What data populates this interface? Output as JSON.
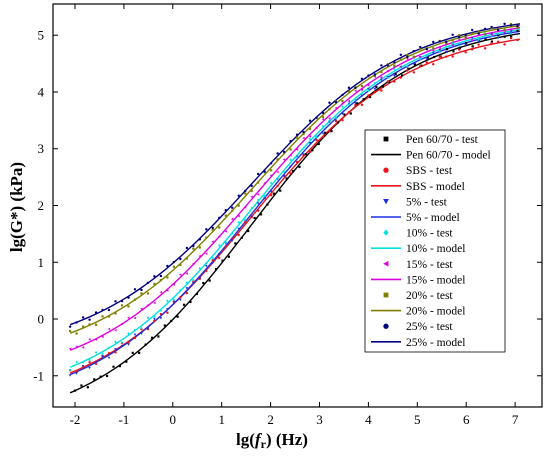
{
  "chart_data": {
    "type": "scatter",
    "xlabel_main": "lg(",
    "xlabel_var": "f",
    "xlabel_sub": "r",
    "xlabel_tail": ") (Hz)",
    "ylabel": "lg(G*) (kPa)",
    "xlim": [
      -2.45,
      7.55
    ],
    "ylim": [
      -1.55,
      5.55
    ],
    "xticks": [
      -2,
      -1,
      0,
      1,
      2,
      3,
      4,
      5,
      6,
      7
    ],
    "yticks": [
      -1,
      0,
      1,
      2,
      3,
      4,
      5
    ],
    "legend_position": "right-center",
    "series": [
      {
        "name": "Pen 60/70 - test",
        "model_name": "Pen 60/70 - model",
        "color": "#000000",
        "marker": "square",
        "start": -1.3,
        "end": 5.03,
        "xmin": -2.0
      },
      {
        "name": "SBS - test",
        "model_name": "SBS - model",
        "color": "#e8141b",
        "marker": "circle",
        "start": -0.95,
        "end": 4.93,
        "xmin": -2.1
      },
      {
        "name": "5% - test",
        "model_name": "5% - model",
        "color": "#1f2fe0",
        "marker": "triangle-down",
        "start": -0.98,
        "end": 5.07,
        "xmin": -2.1
      },
      {
        "name": "10% - test",
        "model_name": "10% - model",
        "color": "#00e0e0",
        "marker": "diamond",
        "start": -0.85,
        "end": 5.1,
        "xmin": -2.1
      },
      {
        "name": "15% - test",
        "model_name": "15% - model",
        "color": "#e000e0",
        "marker": "triangle-left",
        "start": -0.55,
        "end": 5.13,
        "xmin": -2.1
      },
      {
        "name": "20% - test",
        "model_name": "20% - model",
        "color": "#7f7f00",
        "marker": "square",
        "start": -0.25,
        "end": 5.17,
        "xmin": -2.1
      },
      {
        "name": "25% - test",
        "model_name": "25% - model",
        "color": "#00007f",
        "marker": "circle",
        "start": -0.1,
        "end": 5.2,
        "xmin": -2.1
      }
    ]
  }
}
